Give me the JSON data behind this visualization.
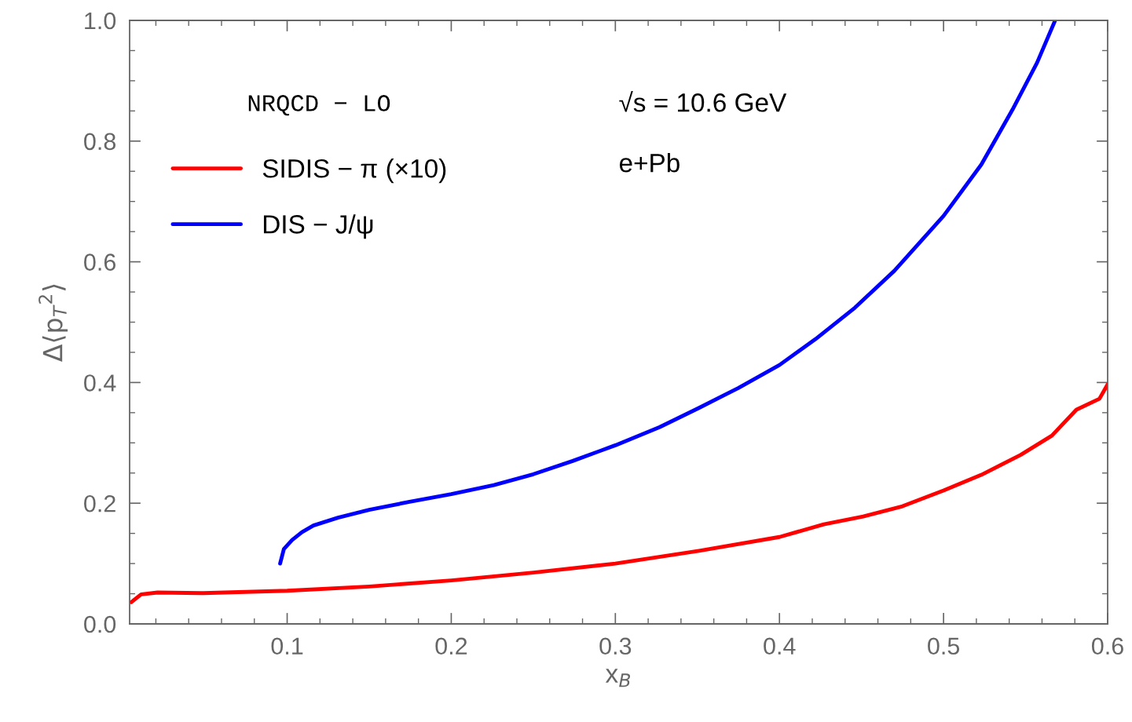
{
  "chart_data": {
    "type": "line",
    "xlabel": "x$_{B}$",
    "ylabel": "Δ⟨p$_{T}$$^{2}$⟩",
    "xlim": [
      0.004,
      0.6
    ],
    "ylim": [
      0,
      1.0
    ],
    "xticks": [
      0.1,
      0.2,
      0.3,
      0.4,
      0.5,
      0.6
    ],
    "yticks": [
      {
        "value": 0,
        "label": "0.0"
      },
      0.2,
      0.4,
      0.6,
      0.8,
      {
        "value": 1.0,
        "label": "1.0"
      }
    ],
    "grid": false,
    "legend": "top left",
    "marker": "none",
    "line_style": "solid",
    "annotations": [
      "NRQCD − LO",
      "√s = 10.6 GeV",
      "e+Pb"
    ],
    "series": [
      {
        "name": "SIDIS − π (×10)",
        "color": "#ff0000",
        "x": [
          0.005,
          0.011,
          0.021,
          0.049,
          0.1,
          0.15,
          0.2,
          0.25,
          0.3,
          0.351,
          0.4,
          0.427,
          0.451,
          0.475,
          0.5,
          0.523,
          0.547,
          0.566,
          0.581,
          0.595,
          0.6
        ],
        "values": [
          0.036,
          0.049,
          0.052,
          0.051,
          0.055,
          0.062,
          0.072,
          0.085,
          0.1,
          0.121,
          0.144,
          0.165,
          0.178,
          0.195,
          0.221,
          0.247,
          0.28,
          0.312,
          0.355,
          0.373,
          0.397
        ]
      },
      {
        "name": "DIS − J/ψ",
        "color": "#0000ff",
        "x": [
          0.0957,
          0.098,
          0.103,
          0.109,
          0.116,
          0.131,
          0.15,
          0.174,
          0.2,
          0.226,
          0.25,
          0.274,
          0.3,
          0.327,
          0.351,
          0.375,
          0.4,
          0.422,
          0.446,
          0.47,
          0.5,
          0.523,
          0.542,
          0.557,
          0.568
        ],
        "values": [
          0.1,
          0.124,
          0.139,
          0.152,
          0.163,
          0.176,
          0.189,
          0.202,
          0.215,
          0.23,
          0.248,
          0.27,
          0.296,
          0.326,
          0.358,
          0.391,
          0.429,
          0.472,
          0.524,
          0.585,
          0.676,
          0.761,
          0.852,
          0.93,
          1.0
        ]
      }
    ]
  }
}
